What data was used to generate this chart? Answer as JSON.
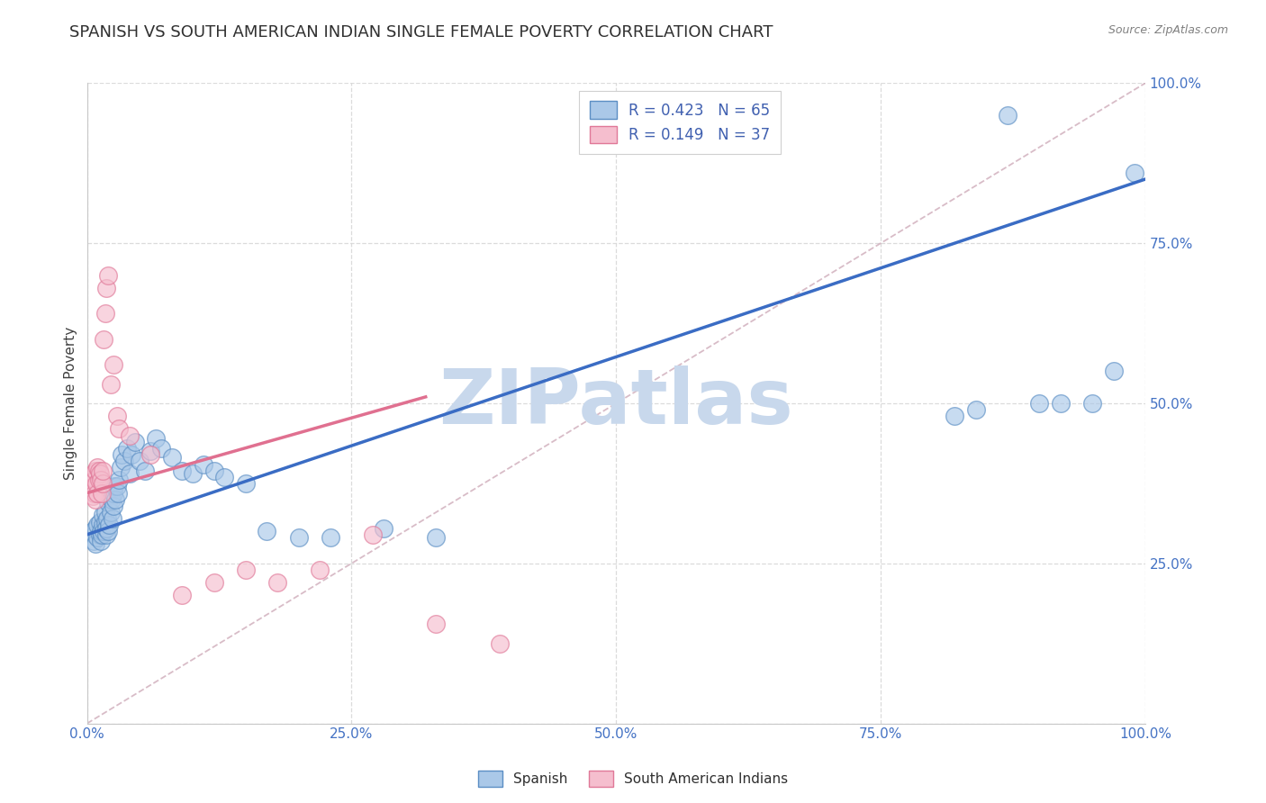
{
  "title": "SPANISH VS SOUTH AMERICAN INDIAN SINGLE FEMALE POVERTY CORRELATION CHART",
  "source": "Source: ZipAtlas.com",
  "ylabel": "Single Female Poverty",
  "xlim": [
    0,
    1
  ],
  "ylim": [
    0,
    1
  ],
  "xticks": [
    0.0,
    0.25,
    0.5,
    0.75,
    1.0
  ],
  "yticks": [
    0.0,
    0.25,
    0.5,
    0.75,
    1.0
  ],
  "xticklabels": [
    "0.0%",
    "25.0%",
    "50.0%",
    "75.0%",
    "100.0%"
  ],
  "yticklabels_right": [
    "100.0%",
    "75.0%",
    "50.0%",
    "25.0%",
    ""
  ],
  "blue_R": 0.423,
  "blue_N": 65,
  "pink_R": 0.149,
  "pink_N": 37,
  "blue_scatter_color": "#aac8e8",
  "blue_edge_color": "#5b8ec4",
  "pink_scatter_color": "#f5bece",
  "pink_edge_color": "#e07898",
  "blue_line_color": "#3a6cc4",
  "pink_line_color": "#e07090",
  "diag_color": "#c8a0b0",
  "grid_color": "#d8d8d8",
  "watermark_color": "#c8d8ec",
  "tick_color": "#4472c4",
  "legend_text_color": "#4060b0",
  "blue_scatter_x": [
    0.005,
    0.006,
    0.007,
    0.008,
    0.008,
    0.01,
    0.01,
    0.012,
    0.012,
    0.013,
    0.013,
    0.014,
    0.015,
    0.015,
    0.016,
    0.017,
    0.017,
    0.018,
    0.018,
    0.019,
    0.02,
    0.02,
    0.021,
    0.022,
    0.023,
    0.024,
    0.025,
    0.025,
    0.026,
    0.027,
    0.028,
    0.029,
    0.03,
    0.032,
    0.033,
    0.035,
    0.038,
    0.04,
    0.042,
    0.045,
    0.05,
    0.055,
    0.06,
    0.065,
    0.07,
    0.08,
    0.09,
    0.1,
    0.11,
    0.12,
    0.13,
    0.15,
    0.17,
    0.2,
    0.23,
    0.28,
    0.33,
    0.82,
    0.84,
    0.87,
    0.9,
    0.92,
    0.95,
    0.97,
    0.99
  ],
  "blue_scatter_y": [
    0.3,
    0.285,
    0.295,
    0.28,
    0.305,
    0.29,
    0.31,
    0.295,
    0.315,
    0.285,
    0.3,
    0.295,
    0.31,
    0.325,
    0.3,
    0.315,
    0.33,
    0.295,
    0.305,
    0.32,
    0.3,
    0.345,
    0.31,
    0.33,
    0.35,
    0.32,
    0.34,
    0.36,
    0.37,
    0.35,
    0.37,
    0.36,
    0.38,
    0.4,
    0.42,
    0.41,
    0.43,
    0.39,
    0.42,
    0.44,
    0.41,
    0.395,
    0.425,
    0.445,
    0.43,
    0.415,
    0.395,
    0.39,
    0.405,
    0.395,
    0.385,
    0.375,
    0.3,
    0.29,
    0.29,
    0.305,
    0.29,
    0.48,
    0.49,
    0.95,
    0.5,
    0.5,
    0.5,
    0.55,
    0.86
  ],
  "pink_scatter_x": [
    0.002,
    0.004,
    0.005,
    0.006,
    0.006,
    0.007,
    0.007,
    0.008,
    0.008,
    0.009,
    0.01,
    0.01,
    0.011,
    0.011,
    0.012,
    0.013,
    0.014,
    0.015,
    0.015,
    0.016,
    0.017,
    0.018,
    0.02,
    0.022,
    0.025,
    0.028,
    0.03,
    0.04,
    0.06,
    0.09,
    0.12,
    0.15,
    0.18,
    0.22,
    0.27,
    0.33,
    0.39
  ],
  "pink_scatter_y": [
    0.38,
    0.365,
    0.355,
    0.37,
    0.39,
    0.36,
    0.38,
    0.35,
    0.395,
    0.375,
    0.36,
    0.4,
    0.38,
    0.395,
    0.39,
    0.38,
    0.36,
    0.375,
    0.395,
    0.6,
    0.64,
    0.68,
    0.7,
    0.53,
    0.56,
    0.48,
    0.46,
    0.45,
    0.42,
    0.2,
    0.22,
    0.24,
    0.22,
    0.24,
    0.295,
    0.155,
    0.125
  ],
  "blue_line_x0": 0.0,
  "blue_line_x1": 1.0,
  "blue_line_y0": 0.295,
  "blue_line_y1": 0.85,
  "pink_line_x0": 0.0,
  "pink_line_x1": 0.32,
  "pink_line_y0": 0.36,
  "pink_line_y1": 0.51,
  "title_fontsize": 13,
  "ylabel_fontsize": 11,
  "tick_fontsize": 11,
  "legend_fontsize": 12,
  "scatter_size": 200,
  "scatter_alpha": 0.65,
  "scatter_lw": 1.0
}
